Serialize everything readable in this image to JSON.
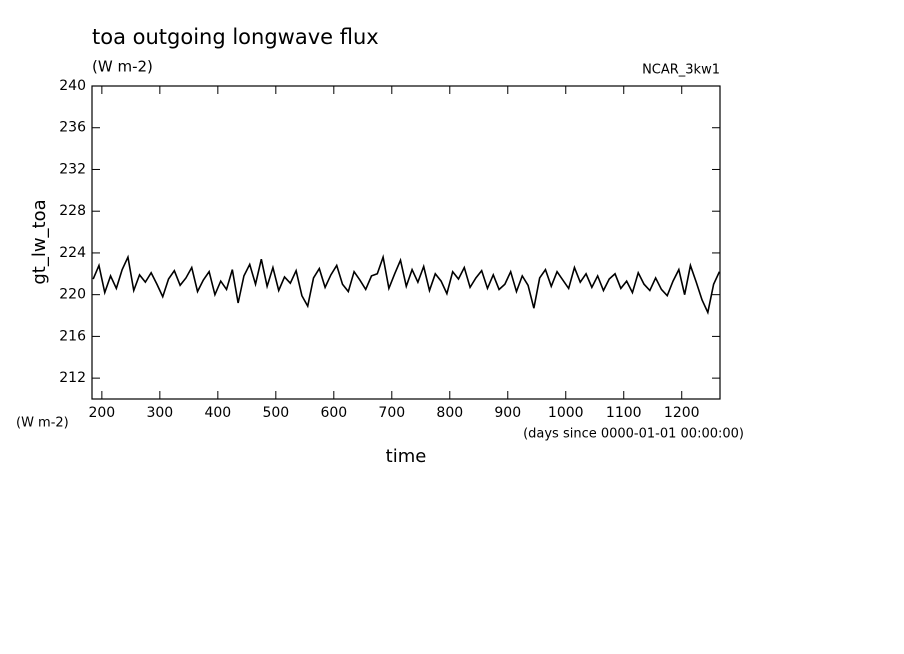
{
  "chart_data": {
    "type": "line",
    "title": "toa outgoing longwave flux",
    "subtitle": "(W m-2)",
    "annotation": "NCAR_3kw1",
    "ylabel": "gt_lw_toa",
    "yunit": "(W m-2)",
    "xlabel": "time",
    "xunit": "(days since 0000-01-01 00:00:00)",
    "x": [
      185,
      195,
      205,
      215,
      225,
      235,
      245,
      255,
      265,
      275,
      285,
      295,
      305,
      315,
      325,
      335,
      345,
      355,
      365,
      375,
      385,
      395,
      405,
      415,
      425,
      435,
      445,
      455,
      465,
      475,
      485,
      495,
      505,
      515,
      525,
      535,
      545,
      555,
      565,
      575,
      585,
      595,
      605,
      615,
      625,
      635,
      645,
      655,
      665,
      675,
      685,
      695,
      705,
      715,
      725,
      735,
      745,
      755,
      765,
      775,
      785,
      795,
      805,
      815,
      825,
      835,
      845,
      855,
      865,
      875,
      885,
      895,
      905,
      915,
      925,
      935,
      945,
      955,
      965,
      975,
      985,
      995,
      1005,
      1015,
      1025,
      1035,
      1045,
      1055,
      1065,
      1075,
      1085,
      1095,
      1105,
      1115,
      1125,
      1135,
      1145,
      1155,
      1165,
      1175,
      1185,
      1195,
      1205,
      1215,
      1225,
      1235,
      1245,
      1255,
      1265
    ],
    "series": [
      {
        "name": "gt_lw_toa",
        "color": "#000000",
        "values": [
          221.5,
          222.8,
          220.2,
          221.8,
          220.6,
          222.4,
          223.6,
          220.4,
          221.9,
          221.2,
          222.1,
          221.0,
          219.8,
          221.5,
          222.3,
          220.9,
          221.6,
          222.6,
          220.3,
          221.4,
          222.2,
          220.0,
          221.3,
          220.5,
          222.4,
          219.2,
          221.8,
          222.9,
          221.0,
          223.4,
          220.8,
          222.6,
          220.4,
          221.7,
          221.1,
          222.3,
          219.9,
          218.9,
          221.6,
          222.5,
          220.7,
          221.9,
          222.8,
          221.0,
          220.3,
          222.2,
          221.4,
          220.5,
          221.8,
          222.0,
          223.6,
          220.6,
          222.0,
          223.3,
          220.8,
          222.4,
          221.2,
          222.7,
          220.4,
          222.0,
          221.3,
          220.1,
          222.2,
          221.5,
          222.6,
          220.7,
          221.6,
          222.3,
          220.6,
          221.9,
          220.5,
          221.0,
          222.2,
          220.3,
          221.8,
          220.9,
          218.7,
          221.6,
          222.4,
          220.8,
          222.2,
          221.4,
          220.6,
          222.6,
          221.2,
          222.0,
          220.7,
          221.8,
          220.4,
          221.5,
          222.0,
          220.6,
          221.3,
          220.2,
          222.1,
          221.0,
          220.4,
          221.6,
          220.5,
          219.9,
          221.3,
          222.4,
          220.0,
          222.8,
          221.2,
          219.5,
          218.3,
          221.0,
          222.2
        ]
      }
    ],
    "xlim": [
      183,
      1266
    ],
    "xticks": [
      200,
      300,
      400,
      500,
      600,
      700,
      800,
      900,
      1000,
      1100,
      1200
    ],
    "ylim": [
      210,
      240
    ],
    "yticks": [
      212,
      216,
      220,
      224,
      228,
      232,
      236,
      240
    ]
  }
}
